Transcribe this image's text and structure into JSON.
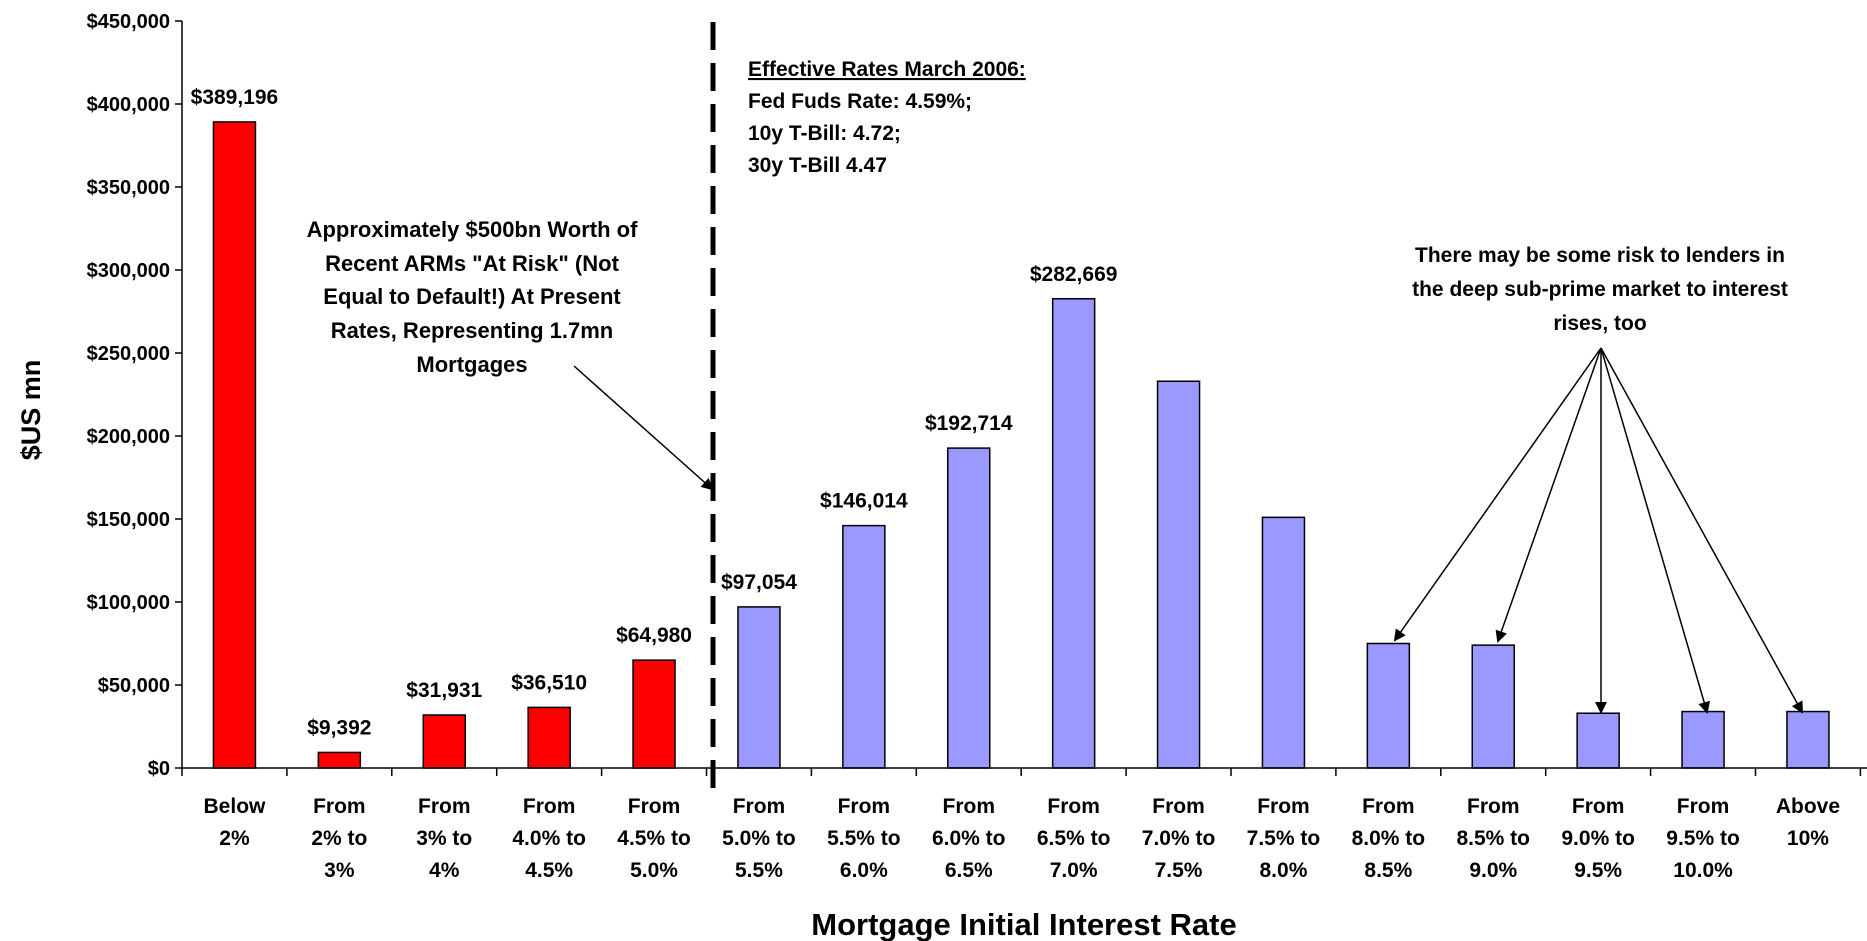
{
  "chart_data": {
    "type": "bar",
    "xlabel": "Mortgage Initial Interest Rate",
    "ylabel": "$US mn",
    "ylim": [
      0,
      450000
    ],
    "yticks": [
      "$0",
      "$50,000",
      "$100,000",
      "$150,000",
      "$200,000",
      "$250,000",
      "$300,000",
      "$350,000",
      "$400,000",
      "$450,000"
    ],
    "ytick_values": [
      0,
      50000,
      100000,
      150000,
      200000,
      250000,
      300000,
      350000,
      400000,
      450000
    ],
    "grid": false,
    "legend": "none",
    "categories": [
      [
        "Below",
        "2%"
      ],
      [
        "From",
        "2% to",
        "3%"
      ],
      [
        "From",
        "3% to",
        "4%"
      ],
      [
        "From",
        "4.0% to",
        "4.5%"
      ],
      [
        "From",
        "4.5% to",
        "5.0%"
      ],
      [
        "From",
        "5.0% to",
        "5.5%"
      ],
      [
        "From",
        "5.5% to",
        "6.0%"
      ],
      [
        "From",
        "6.0% to",
        "6.5%"
      ],
      [
        "From",
        "6.5% to",
        "7.0%"
      ],
      [
        "From",
        "7.0% to",
        "7.5%"
      ],
      [
        "From",
        "7.5% to",
        "8.0%"
      ],
      [
        "From",
        "8.0% to",
        "8.5%"
      ],
      [
        "From",
        "8.5% to",
        "9.0%"
      ],
      [
        "From",
        "9.0% to",
        "9.5%"
      ],
      [
        "From",
        "9.5% to",
        "10.0%"
      ],
      [
        "Above",
        "10%"
      ]
    ],
    "values": [
      389196,
      9392,
      31931,
      36510,
      64980,
      97054,
      146014,
      192714,
      282669,
      233000,
      151000,
      75000,
      74000,
      33000,
      34000,
      34000
    ],
    "data_labels": [
      "$389,196",
      "$9,392",
      "$31,931",
      "$36,510",
      "$64,980",
      "$97,054",
      "$146,014",
      "$192,714",
      "$282,669",
      "",
      "",
      "",
      "",
      "",
      "",
      ""
    ],
    "colors": {
      "at_risk": "#ff0000",
      "other": "#9999ff",
      "outline": "#000000"
    },
    "bar_colors": [
      "at_risk",
      "at_risk",
      "at_risk",
      "at_risk",
      "at_risk",
      "other",
      "other",
      "other",
      "other",
      "other",
      "other",
      "other",
      "other",
      "other",
      "other",
      "other"
    ],
    "annotations": {
      "rates_box": {
        "heading": "Effective Rates March 2006:",
        "lines": [
          "Fed Fuds Rate: 4.59%;",
          "10y T-Bill: 4.72;",
          "30y T-Bill 4.47"
        ]
      },
      "at_risk_note": {
        "lines": [
          "Approximately $500bn Worth of",
          "Recent ARMs \"At Risk\" (Not",
          "Equal to Default!) At Present",
          "Rates, Representing 1.7mn",
          "Mortgages"
        ]
      },
      "subprime_note": {
        "lines": [
          "There may be some risk to lenders in",
          "the deep sub-prime market to interest",
          "rises, too"
        ]
      }
    }
  }
}
